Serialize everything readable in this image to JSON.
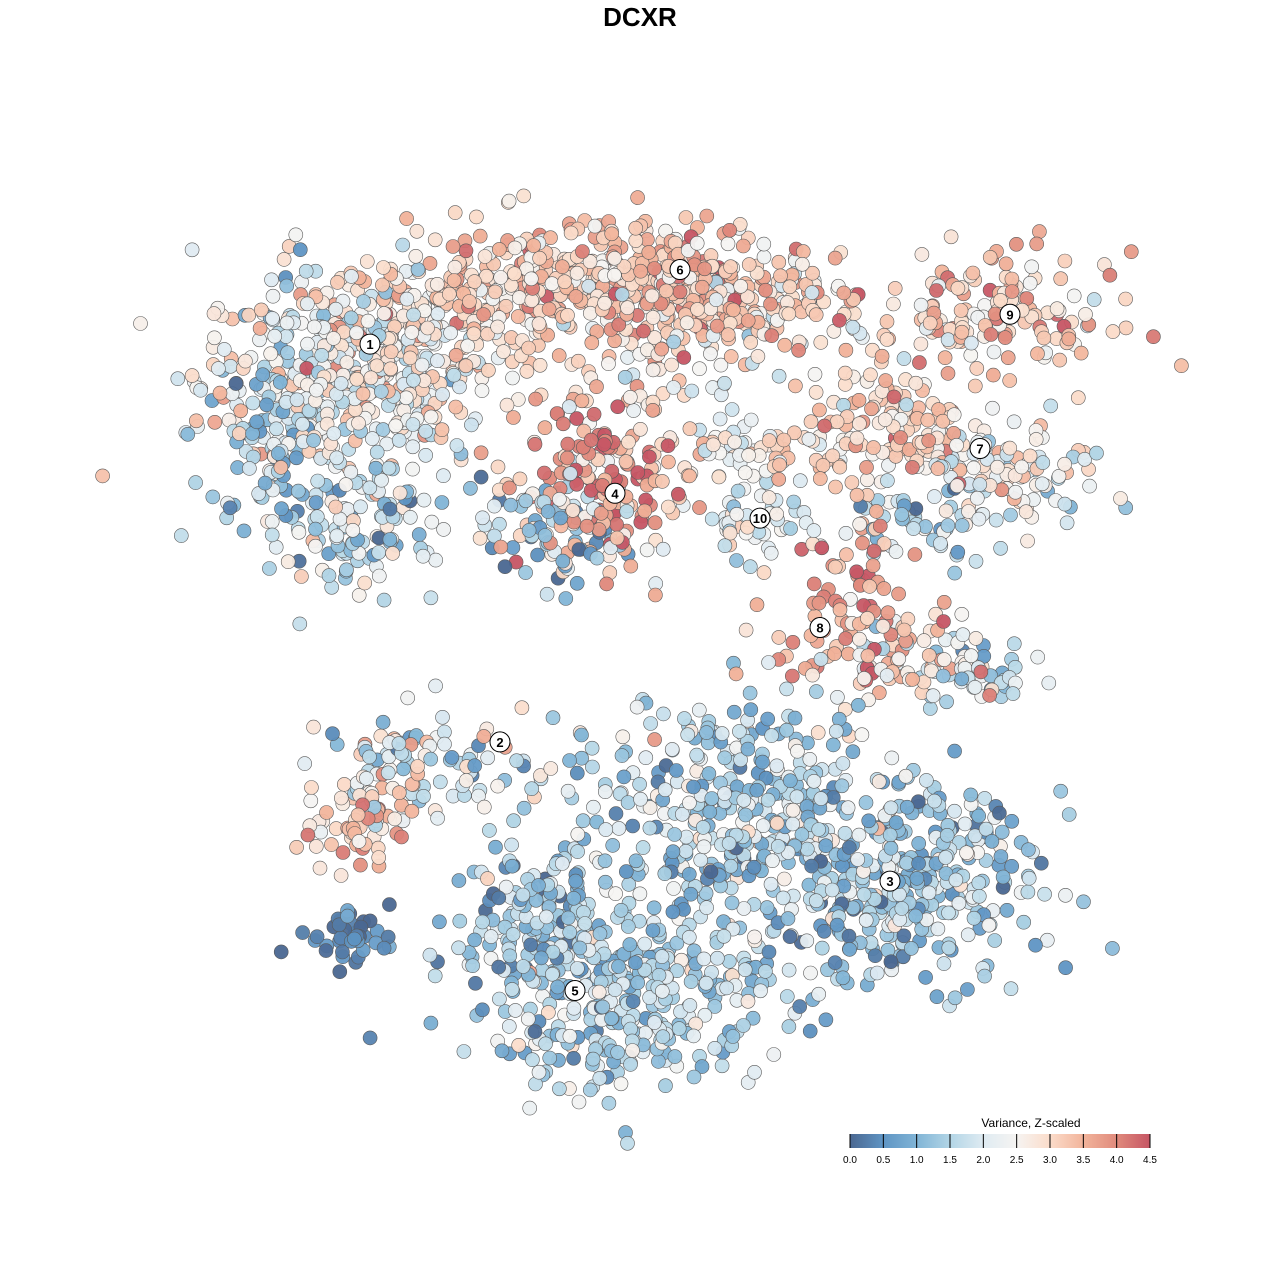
{
  "chart_data": {
    "type": "scatter",
    "title": "DCXR",
    "xlabel": "",
    "ylabel": "",
    "xlim": [
      -44,
      49
    ],
    "ylim": [
      -45,
      46
    ],
    "legend": {
      "title": "Variance, Z-scaled",
      "position": "bottom-right",
      "ticks": [
        "0.0",
        "0.5",
        "1.0",
        "1.5",
        "2.0",
        "2.5",
        "3.0",
        "3.5",
        "4.0",
        "4.5"
      ],
      "range": [
        0,
        4.5
      ]
    },
    "colorscale": [
      [
        0,
        "#4a6791"
      ],
      [
        0.5,
        "#5f95c4"
      ],
      [
        1,
        "#80b4d6"
      ],
      [
        1.5,
        "#b2d5e6"
      ],
      [
        2,
        "#dfebf2"
      ],
      [
        2.5,
        "#f6f4f2"
      ],
      [
        3,
        "#fbdcca"
      ],
      [
        3.5,
        "#f2b49b"
      ],
      [
        4,
        "#e08a7c"
      ],
      [
        4.5,
        "#c65564"
      ]
    ],
    "note": "Points summarised as per-cluster blobs (centre, spread, count, mean and sd of value)",
    "blobs": [
      {
        "cluster": "1",
        "x": -30,
        "y": 26,
        "sx": 7,
        "sy": 6,
        "n": 420,
        "mean": 2.3,
        "sd": 0.7
      },
      {
        "cluster": "1",
        "x": -37,
        "y": 22,
        "sx": 3,
        "sy": 5,
        "n": 80,
        "mean": 1.3,
        "sd": 0.6
      },
      {
        "cluster": "1",
        "x": -29,
        "y": 11,
        "sx": 4,
        "sy": 3,
        "n": 90,
        "mean": 1.4,
        "sd": 0.8
      },
      {
        "cluster": "1",
        "x": -20,
        "y": 30,
        "sx": 6,
        "sy": 4,
        "n": 150,
        "mean": 2.8,
        "sd": 0.5
      },
      {
        "cluster": "6",
        "x": -8,
        "y": 36,
        "sx": 9,
        "sy": 3,
        "n": 330,
        "mean": 3.1,
        "sd": 0.5
      },
      {
        "cluster": "6",
        "x": 5,
        "y": 36,
        "sx": 5,
        "sy": 3,
        "n": 140,
        "mean": 3.5,
        "sd": 0.6
      },
      {
        "cluster": "6",
        "x": 12,
        "y": 34,
        "sx": 6,
        "sy": 3,
        "n": 120,
        "mean": 3.0,
        "sd": 0.6
      },
      {
        "cluster": "6",
        "x": 3,
        "y": 27,
        "sx": 4,
        "sy": 3,
        "n": 50,
        "mean": 2.6,
        "sd": 0.8
      },
      {
        "cluster": "4",
        "x": -4,
        "y": 16,
        "sx": 4,
        "sy": 4,
        "n": 170,
        "mean": 3.5,
        "sd": 0.8
      },
      {
        "cluster": "4",
        "x": -8,
        "y": 11,
        "sx": 4,
        "sy": 3,
        "n": 80,
        "mean": 1.5,
        "sd": 1.0
      },
      {
        "cluster": "10",
        "x": 12,
        "y": 13,
        "sx": 2.5,
        "sy": 3,
        "n": 50,
        "mean": 2.2,
        "sd": 0.6
      },
      {
        "cluster": "7",
        "x": 25,
        "y": 22,
        "sx": 4,
        "sy": 3,
        "n": 120,
        "mean": 3.1,
        "sd": 0.5
      },
      {
        "cluster": "7",
        "x": 37,
        "y": 17,
        "sx": 5,
        "sy": 2.5,
        "n": 110,
        "mean": 2.4,
        "sd": 0.6
      },
      {
        "cluster": "7",
        "x": 12,
        "y": 19,
        "sx": 5,
        "sy": 1.5,
        "n": 60,
        "mean": 2.7,
        "sd": 0.7
      },
      {
        "cluster": "7",
        "x": 29,
        "y": 12,
        "sx": 4,
        "sy": 2,
        "n": 50,
        "mean": 1.5,
        "sd": 0.8
      },
      {
        "cluster": "9",
        "x": 35,
        "y": 33,
        "sx": 6,
        "sy": 3,
        "n": 150,
        "mean": 3.1,
        "sd": 0.6
      },
      {
        "cluster": "8",
        "x": 23,
        "y": -1,
        "sx": 5,
        "sy": 3,
        "n": 90,
        "mean": 3.3,
        "sd": 0.7
      },
      {
        "cluster": "8",
        "x": 32,
        "y": -3,
        "sx": 4,
        "sy": 2,
        "n": 60,
        "mean": 1.8,
        "sd": 0.7
      },
      {
        "cluster": "8",
        "x": 21,
        "y": 6,
        "sx": 2,
        "sy": 3,
        "n": 40,
        "mean": 3.8,
        "sd": 0.5
      },
      {
        "cluster": "2",
        "x": -22,
        "y": -12,
        "sx": 5,
        "sy": 2.5,
        "n": 90,
        "mean": 2.0,
        "sd": 0.8
      },
      {
        "cluster": "2",
        "x": -28,
        "y": -18,
        "sx": 3,
        "sy": 2,
        "n": 60,
        "mean": 3.2,
        "sd": 0.6
      },
      {
        "cluster": "3",
        "x": 26,
        "y": -24,
        "sx": 7,
        "sy": 5,
        "n": 330,
        "mean": 1.3,
        "sd": 0.7
      },
      {
        "cluster": "3",
        "x": 10,
        "y": -17,
        "sx": 9,
        "sy": 6,
        "n": 380,
        "mean": 1.5,
        "sd": 0.7
      },
      {
        "cluster": "5",
        "x": -2,
        "y": -35,
        "sx": 8,
        "sy": 5,
        "n": 380,
        "mean": 1.5,
        "sd": 0.6
      },
      {
        "cluster": "5",
        "x": -10,
        "y": -27,
        "sx": 4,
        "sy": 4,
        "n": 120,
        "mean": 1.2,
        "sd": 0.7
      },
      {
        "cluster": "0",
        "x": -29,
        "y": -29,
        "sx": 3,
        "sy": 1.5,
        "n": 40,
        "mean": 0.3,
        "sd": 0.3
      }
    ],
    "labels": [
      {
        "text": "1",
        "x": -27,
        "y": 30
      },
      {
        "text": "2",
        "x": -14,
        "y": -10
      },
      {
        "text": "3",
        "x": 25,
        "y": -24
      },
      {
        "text": "4",
        "x": -2.5,
        "y": 15
      },
      {
        "text": "5",
        "x": -6.5,
        "y": -35
      },
      {
        "text": "6",
        "x": 4,
        "y": 37.5
      },
      {
        "text": "7",
        "x": 34,
        "y": 19.5
      },
      {
        "text": "8",
        "x": 18,
        "y": 1.5
      },
      {
        "text": "9",
        "x": 37,
        "y": 33
      },
      {
        "text": "10",
        "x": 12,
        "y": 12.5
      }
    ]
  }
}
